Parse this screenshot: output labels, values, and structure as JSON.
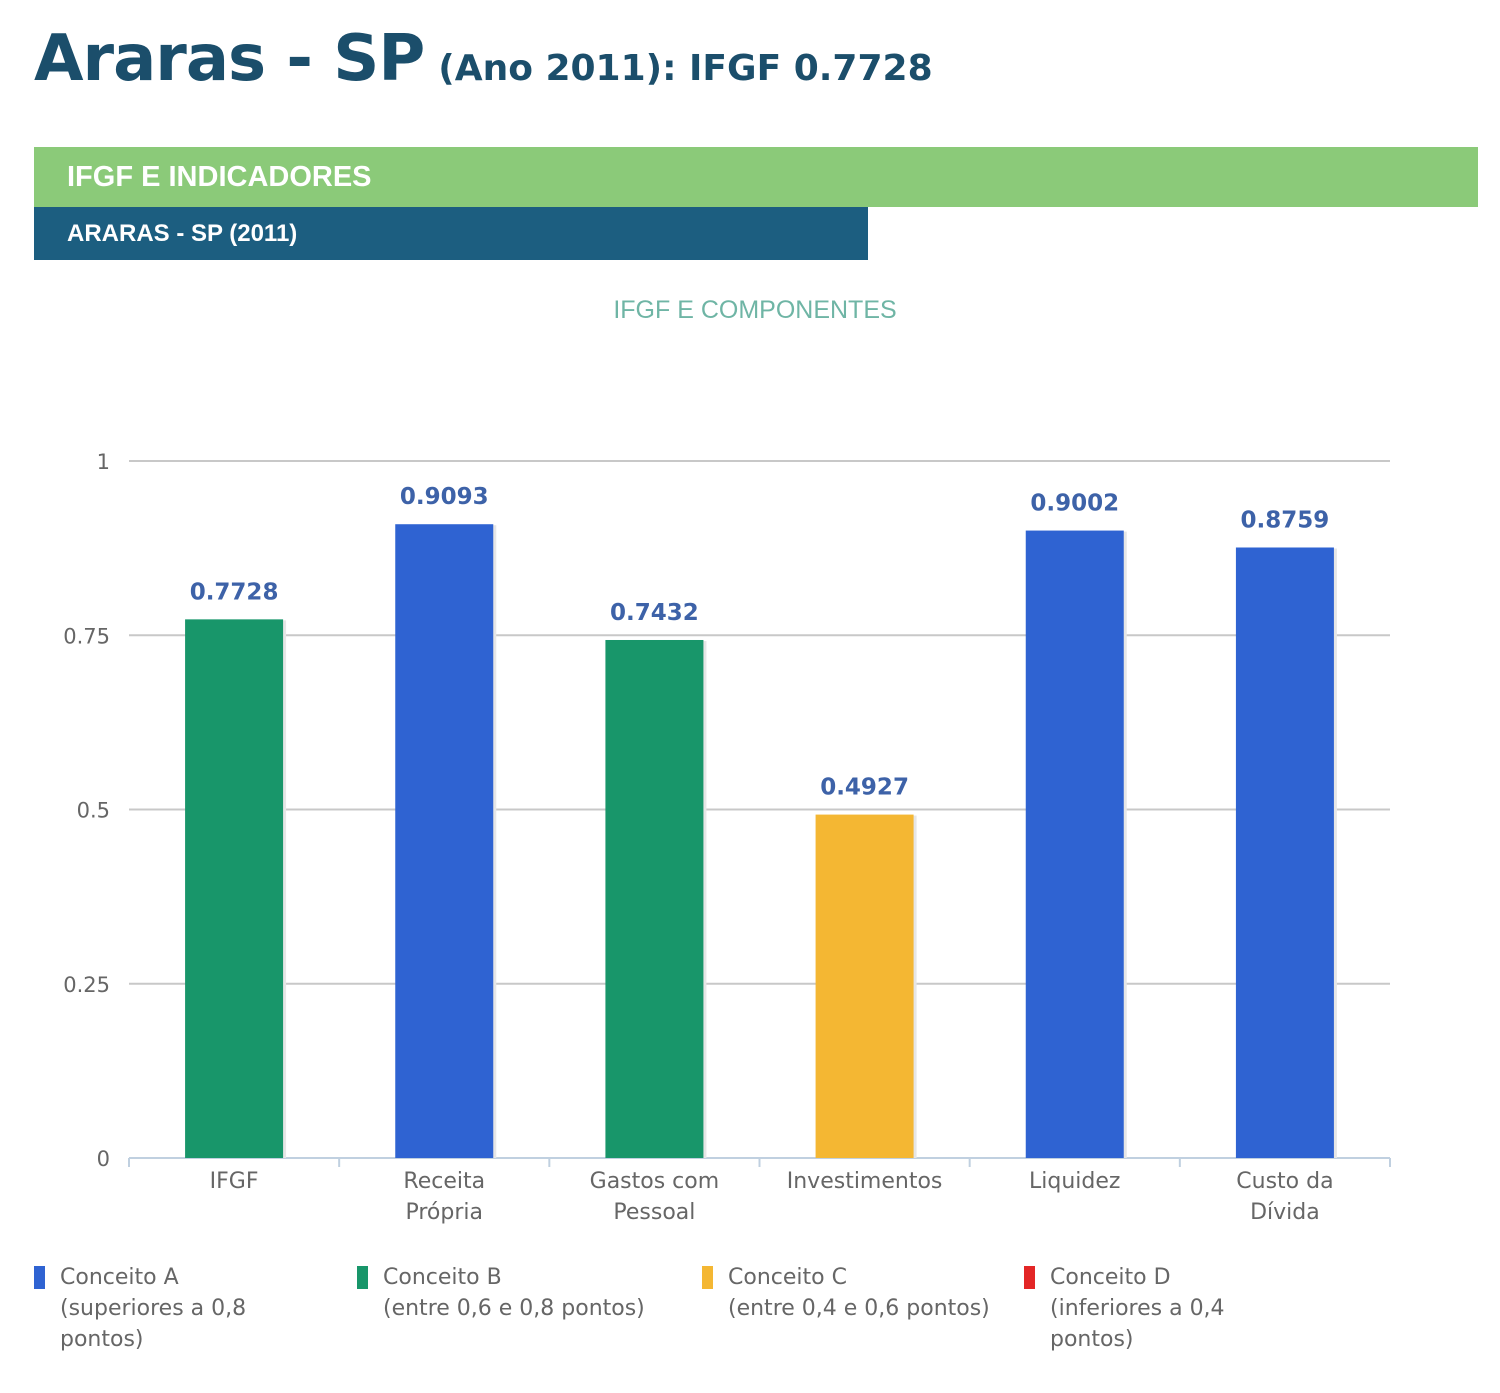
{
  "header": {
    "city": "Araras - SP",
    "subtitle": "(Ano 2011): IFGF  0.7728"
  },
  "bands": {
    "section": "IFGF E INDICADORES",
    "subsection": "ARARAS - SP (2011)"
  },
  "chart_data": {
    "type": "bar",
    "title": "IFGF E COMPONENTES",
    "categories": [
      "IFGF",
      "Receita Própria",
      "Gastos com Pessoal",
      "Investimentos",
      "Liquidez",
      "Custo da Dívida"
    ],
    "category_lines": [
      [
        "IFGF"
      ],
      [
        "Receita",
        "Própria"
      ],
      [
        "Gastos com",
        "Pessoal"
      ],
      [
        "Investimentos"
      ],
      [
        "Liquidez"
      ],
      [
        "Custo da",
        "Dívida"
      ]
    ],
    "values": [
      0.7728,
      0.9093,
      0.7432,
      0.4927,
      0.9002,
      0.8759
    ],
    "value_labels": [
      "0.7728",
      "0.9093",
      "0.7432",
      "0.4927",
      "0.9002",
      "0.8759"
    ],
    "bar_colors": [
      "#18966a",
      "#2f63d2",
      "#18966a",
      "#f4b733",
      "#2f63d2",
      "#2f63d2"
    ],
    "ylim": [
      0,
      1
    ],
    "yticks": [
      0,
      0.25,
      0.5,
      0.75,
      1
    ],
    "ytick_labels": [
      "0",
      "0.25",
      "0.5",
      "0.75",
      "1"
    ],
    "grid": true,
    "xlabel": "",
    "ylabel": ""
  },
  "legend": [
    {
      "color": "#2f63d2",
      "lines": [
        "Conceito A",
        "(superiores a 0,8",
        "pontos)"
      ]
    },
    {
      "color": "#18966a",
      "lines": [
        "Conceito B",
        "(entre 0,6 e 0,8 pontos)"
      ]
    },
    {
      "color": "#f4b733",
      "lines": [
        "Conceito C",
        "(entre 0,4 e 0,6 pontos)"
      ]
    },
    {
      "color": "#e32626",
      "lines": [
        "Conceito D",
        "(inferiores a 0,4",
        "pontos)"
      ]
    }
  ]
}
